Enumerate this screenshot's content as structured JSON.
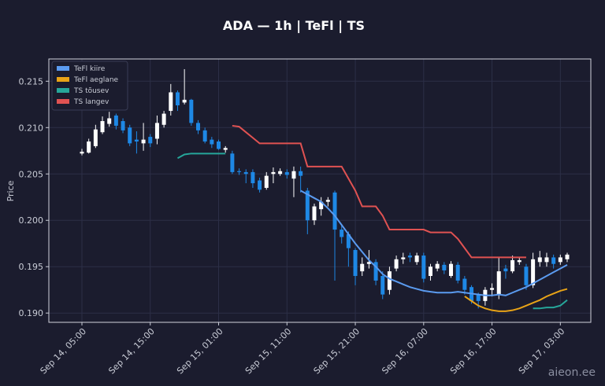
{
  "chart_data": {
    "type": "candlestick",
    "title": "ADA — 1h  |  TeFl  |  TS",
    "y_label": "Price",
    "watermark": "aieon.ee",
    "up_color": "#ffffff",
    "down_color": "#1e88e5",
    "grid": true,
    "legend": "upper left",
    "categories": [
      "Sep 14, 05:00",
      null,
      null,
      null,
      null,
      null,
      null,
      null,
      null,
      null,
      "Sep 14, 15:00",
      null,
      null,
      null,
      null,
      null,
      null,
      null,
      null,
      null,
      "Sep 15, 01:00",
      null,
      null,
      null,
      null,
      null,
      null,
      null,
      null,
      null,
      "Sep 15, 11:00",
      null,
      null,
      null,
      null,
      null,
      null,
      null,
      null,
      null,
      "Sep 15, 21:00",
      null,
      null,
      null,
      null,
      null,
      null,
      null,
      null,
      null,
      "Sep 16, 07:00",
      null,
      null,
      null,
      null,
      null,
      null,
      null,
      null,
      null,
      "Sep 16, 17:00",
      null,
      null,
      null,
      null,
      null,
      null,
      null,
      null,
      null,
      "Sep 17, 03:00",
      null
    ],
    "open": [
      0.2072,
      0.2073,
      0.208,
      0.2095,
      0.2104,
      0.2113,
      0.2107,
      0.21,
      0.2087,
      0.2083,
      0.209,
      0.2088,
      0.2103,
      0.2118,
      0.2138,
      0.2127,
      0.213,
      0.2105,
      0.2097,
      0.2087,
      0.2085,
      0.2076,
      0.2072,
      0.2053,
      0.2052,
      0.2052,
      0.2043,
      0.2035,
      0.205,
      0.205,
      0.2052,
      0.2045,
      0.2053,
      0.2032,
      0.2,
      0.2012,
      0.202,
      0.203,
      0.199,
      0.1985,
      0.1968,
      0.1945,
      0.1953,
      0.1955,
      0.194,
      0.1925,
      0.1948,
      0.1958,
      0.1962,
      0.1955,
      0.1962,
      0.194,
      0.1948,
      0.1952,
      0.194,
      0.1952,
      0.1937,
      0.1928,
      0.192,
      0.1913,
      0.1925,
      0.192,
      0.1948,
      0.1945,
      0.1955,
      0.195,
      0.193,
      0.1955,
      0.1955,
      0.196,
      0.1955,
      0.1958
    ],
    "high": [
      0.2077,
      0.2088,
      0.2103,
      0.2112,
      0.2117,
      0.2115,
      0.211,
      0.2103,
      0.2096,
      0.2105,
      0.2093,
      0.2113,
      0.2118,
      0.2147,
      0.214,
      0.2163,
      0.2131,
      0.2108,
      0.21,
      0.209,
      0.2087,
      0.208,
      0.2075,
      0.2056,
      0.2055,
      0.2055,
      0.2046,
      0.2052,
      0.2057,
      0.2056,
      0.2055,
      0.2058,
      0.2058,
      0.2035,
      0.2018,
      0.2025,
      0.2025,
      0.2032,
      0.1995,
      0.1988,
      0.197,
      0.196,
      0.1968,
      0.1958,
      0.1945,
      0.195,
      0.1962,
      0.1965,
      0.1965,
      0.1965,
      0.1965,
      0.1953,
      0.1956,
      0.1955,
      0.1956,
      0.1955,
      0.194,
      0.193,
      0.1922,
      0.1928,
      0.1932,
      0.196,
      0.1952,
      0.1962,
      0.196,
      0.1953,
      0.1965,
      0.1967,
      0.1965,
      0.1963,
      0.1963,
      0.1965
    ],
    "low": [
      0.207,
      0.2072,
      0.2078,
      0.2093,
      0.2101,
      0.2098,
      0.2094,
      0.208,
      0.2072,
      0.2075,
      0.2079,
      0.2082,
      0.21,
      0.2113,
      0.2118,
      0.2125,
      0.2102,
      0.2093,
      0.2083,
      0.2078,
      0.2076,
      0.2073,
      0.205,
      0.2049,
      0.204,
      0.2035,
      0.203,
      0.2033,
      0.204,
      0.2048,
      0.2045,
      0.2025,
      0.203,
      0.1985,
      0.1995,
      0.2005,
      0.2015,
      0.1935,
      0.1975,
      0.195,
      0.193,
      0.194,
      0.1948,
      0.193,
      0.1915,
      0.192,
      0.1945,
      0.1953,
      0.1955,
      0.1952,
      0.1933,
      0.1935,
      0.1945,
      0.1942,
      0.1938,
      0.1932,
      0.192,
      0.191,
      0.1905,
      0.1908,
      0.1918,
      0.1915,
      0.1937,
      0.1943,
      0.1952,
      0.1925,
      0.1927,
      0.195,
      0.195,
      0.1948,
      0.1952,
      0.1955
    ],
    "close": [
      0.2074,
      0.2085,
      0.2098,
      0.2107,
      0.211,
      0.2102,
      0.2097,
      0.2083,
      0.2085,
      0.2087,
      0.2083,
      0.2105,
      0.2115,
      0.2138,
      0.2124,
      0.213,
      0.2105,
      0.2097,
      0.2085,
      0.2082,
      0.2077,
      0.2078,
      0.2052,
      0.2052,
      0.205,
      0.204,
      0.2033,
      0.2048,
      0.2052,
      0.2053,
      0.2049,
      0.2053,
      0.2048,
      0.2,
      0.2015,
      0.202,
      0.2022,
      0.199,
      0.1982,
      0.197,
      0.194,
      0.1953,
      0.1955,
      0.1935,
      0.192,
      0.1945,
      0.1958,
      0.196,
      0.196,
      0.1962,
      0.1937,
      0.195,
      0.1953,
      0.1946,
      0.1953,
      0.1935,
      0.1925,
      0.1913,
      0.1913,
      0.1925,
      0.1927,
      0.1945,
      0.1945,
      0.1957,
      0.1957,
      0.193,
      0.1958,
      0.196,
      0.196,
      0.1953,
      0.196,
      0.1963
    ],
    "series": [
      {
        "name": "TeFl kiire",
        "color": "#5b9bf0",
        "values": [
          null,
          null,
          null,
          null,
          null,
          null,
          null,
          null,
          null,
          null,
          null,
          null,
          null,
          null,
          null,
          null,
          null,
          null,
          null,
          null,
          null,
          null,
          null,
          null,
          null,
          null,
          null,
          null,
          null,
          null,
          null,
          null,
          0.2032,
          0.2028,
          0.2024,
          0.202,
          0.2013,
          0.2005,
          0.1995,
          0.1985,
          0.1975,
          0.1966,
          0.1957,
          0.195,
          0.1942,
          0.1937,
          0.1934,
          0.1931,
          0.1928,
          0.1926,
          0.1924,
          0.1923,
          0.1922,
          0.1922,
          0.1922,
          0.1923,
          0.1922,
          0.1921,
          0.192,
          0.1919,
          0.1919,
          0.192,
          0.1919,
          0.1922,
          0.1925,
          0.1928,
          0.1932,
          0.1936,
          0.194,
          0.1944,
          0.1948,
          0.1952
        ]
      },
      {
        "name": "TeFl aeglane",
        "color": "#e8a317",
        "values": [
          null,
          null,
          null,
          null,
          null,
          null,
          null,
          null,
          null,
          null,
          null,
          null,
          null,
          null,
          null,
          null,
          null,
          null,
          null,
          null,
          null,
          null,
          null,
          null,
          null,
          null,
          null,
          null,
          null,
          null,
          null,
          null,
          null,
          null,
          null,
          null,
          null,
          null,
          null,
          null,
          null,
          null,
          null,
          null,
          null,
          null,
          null,
          null,
          null,
          null,
          null,
          null,
          null,
          null,
          null,
          null,
          0.1918,
          0.1913,
          0.1908,
          0.1905,
          0.1903,
          0.1902,
          0.1902,
          0.1903,
          0.1905,
          0.1908,
          0.1911,
          0.1914,
          0.1918,
          0.1921,
          0.1924,
          0.1926
        ]
      },
      {
        "name": "TS tõusev",
        "color": "#26a69a",
        "values": [
          null,
          null,
          null,
          null,
          null,
          null,
          null,
          null,
          null,
          null,
          null,
          null,
          null,
          null,
          0.2067,
          0.2071,
          0.2072,
          0.2072,
          0.2072,
          0.2072,
          0.2072,
          0.2072,
          null,
          null,
          null,
          null,
          null,
          null,
          null,
          null,
          null,
          null,
          null,
          null,
          null,
          null,
          null,
          null,
          null,
          null,
          null,
          null,
          null,
          null,
          null,
          null,
          null,
          null,
          null,
          null,
          null,
          null,
          null,
          null,
          null,
          null,
          null,
          null,
          null,
          null,
          null,
          null,
          null,
          null,
          null,
          null,
          0.1905,
          0.1905,
          0.1906,
          0.1906,
          0.1908,
          0.1914
        ]
      },
      {
        "name": "TS langev",
        "color": "#e05252",
        "values": [
          null,
          null,
          null,
          null,
          null,
          null,
          null,
          null,
          null,
          null,
          null,
          null,
          null,
          null,
          null,
          null,
          null,
          null,
          null,
          null,
          null,
          null,
          0.2102,
          0.2101,
          0.2095,
          0.2089,
          0.2083,
          0.2083,
          0.2083,
          0.2083,
          0.2083,
          0.2083,
          0.2083,
          0.2058,
          0.2058,
          0.2058,
          0.2058,
          0.2058,
          0.2058,
          0.2045,
          0.2032,
          0.2015,
          0.2015,
          0.2015,
          0.2005,
          0.199,
          0.199,
          0.199,
          0.199,
          0.199,
          0.199,
          0.1987,
          0.1987,
          0.1987,
          0.1987,
          0.198,
          0.197,
          0.196,
          0.196,
          0.196,
          0.196,
          0.196,
          0.196,
          0.196,
          0.196,
          0.196,
          null,
          null,
          null,
          null,
          null,
          null
        ]
      }
    ],
    "ylim": [
      0.189,
      0.2174
    ],
    "yticks": [
      {
        "value": 0.19,
        "label": "0.190"
      },
      {
        "value": 0.195,
        "label": "0.195"
      },
      {
        "value": 0.2,
        "label": "0.200"
      },
      {
        "value": 0.205,
        "label": "0.205"
      },
      {
        "value": 0.21,
        "label": "0.210"
      },
      {
        "value": 0.215,
        "label": "0.215"
      }
    ]
  }
}
